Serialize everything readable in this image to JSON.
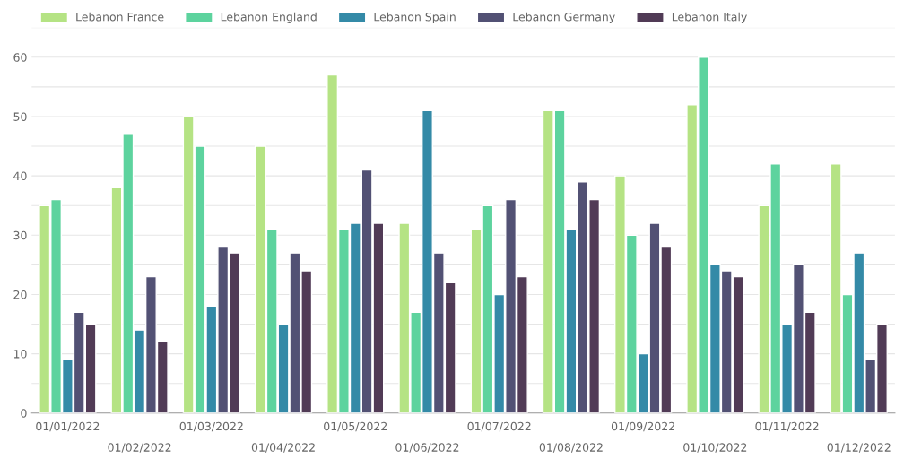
{
  "chart_data": {
    "type": "bar",
    "categories": [
      "01/01/2022",
      "01/02/2022",
      "01/03/2022",
      "01/04/2022",
      "01/05/2022",
      "01/06/2022",
      "01/07/2022",
      "01/08/2022",
      "01/09/2022",
      "01/10/2022",
      "01/11/2022",
      "01/12/2022"
    ],
    "series": [
      {
        "name": "Lebanon France",
        "color": "#b5e384",
        "values": [
          35,
          38,
          50,
          45,
          57,
          32,
          31,
          51,
          40,
          52,
          35,
          42
        ]
      },
      {
        "name": "Lebanon England",
        "color": "#5dd39e",
        "values": [
          36,
          47,
          45,
          31,
          31,
          17,
          35,
          51,
          30,
          60,
          42,
          20
        ]
      },
      {
        "name": "Lebanon Spain",
        "color": "#348aa7",
        "values": [
          9,
          14,
          18,
          15,
          32,
          51,
          20,
          31,
          10,
          25,
          15,
          27
        ]
      },
      {
        "name": "Lebanon Germany",
        "color": "#525174",
        "values": [
          17,
          23,
          28,
          27,
          41,
          27,
          36,
          39,
          32,
          24,
          25,
          9
        ]
      },
      {
        "name": "Lebanon Italy",
        "color": "#513b56",
        "values": [
          15,
          12,
          27,
          24,
          32,
          22,
          23,
          36,
          28,
          23,
          17,
          15
        ]
      }
    ],
    "ylim": [
      0,
      65
    ],
    "yticks": [
      0,
      {
        "value": 5,
        "label": null
      },
      10,
      {
        "value": 15,
        "label": null
      },
      20,
      {
        "value": 25,
        "label": null
      },
      30,
      {
        "value": 35,
        "label": null
      },
      40,
      {
        "value": 45,
        "label": null
      },
      50,
      {
        "value": 55,
        "label": null
      },
      60,
      {
        "value": 65,
        "label": null
      }
    ],
    "grid": "y",
    "legend": "top left"
  }
}
